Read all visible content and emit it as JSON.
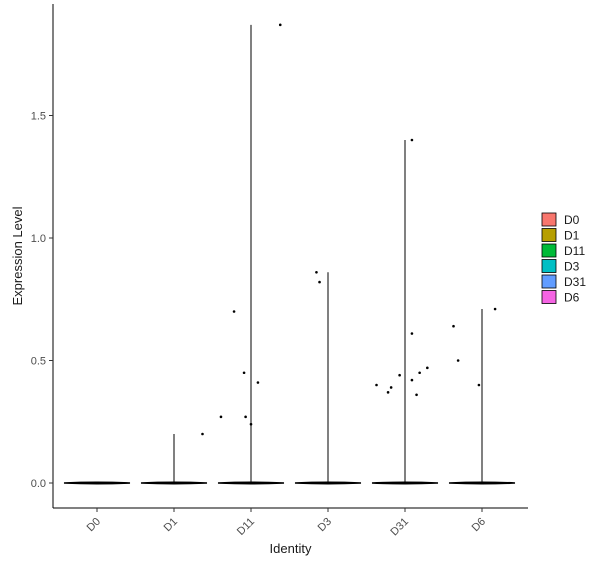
{
  "chart_data": {
    "type": "violin",
    "title": "",
    "xlabel": "Identity",
    "ylabel": "Expression Level",
    "ylim": [
      -0.08,
      1.93
    ],
    "yticks": [
      0.0,
      0.5,
      1.0,
      1.5
    ],
    "ytick_labels": [
      "0.0",
      "0.5",
      "1.0",
      "1.5"
    ],
    "categories": [
      "D0",
      "D1",
      "D11",
      "D3",
      "D31",
      "D6"
    ],
    "grid": false,
    "legend_position": "right",
    "series": [
      {
        "name": "D0",
        "color": "#F8766D",
        "max": 0.0,
        "points": []
      },
      {
        "name": "D1",
        "color": "#B79F00",
        "max": 0.2,
        "points": [
          {
            "jitter": 0.37,
            "value": 0.2
          }
        ]
      },
      {
        "name": "D11",
        "color": "#00BA38",
        "max": 1.87,
        "points": [
          {
            "jitter": -0.39,
            "value": 0.27
          },
          {
            "jitter": -0.22,
            "value": 0.7
          },
          {
            "jitter": -0.09,
            "value": 0.45
          },
          {
            "jitter": -0.07,
            "value": 0.27
          },
          {
            "jitter": 0.0,
            "value": 0.24
          },
          {
            "jitter": 0.09,
            "value": 0.41
          },
          {
            "jitter": 0.38,
            "value": 1.87
          }
        ]
      },
      {
        "name": "D3",
        "color": "#00BFC4",
        "max": 0.86,
        "points": [
          {
            "jitter": -0.15,
            "value": 0.86
          },
          {
            "jitter": -0.11,
            "value": 0.82
          }
        ]
      },
      {
        "name": "D31",
        "color": "#619CFF",
        "max": 1.4,
        "points": [
          {
            "jitter": -0.37,
            "value": 0.4
          },
          {
            "jitter": -0.22,
            "value": 0.37
          },
          {
            "jitter": -0.18,
            "value": 0.39
          },
          {
            "jitter": -0.07,
            "value": 0.44
          },
          {
            "jitter": 0.09,
            "value": 1.4
          },
          {
            "jitter": 0.09,
            "value": 0.61
          },
          {
            "jitter": 0.09,
            "value": 0.42
          },
          {
            "jitter": 0.15,
            "value": 0.36
          },
          {
            "jitter": 0.19,
            "value": 0.45
          },
          {
            "jitter": 0.29,
            "value": 0.47
          }
        ]
      },
      {
        "name": "D6",
        "color": "#F564E3",
        "max": 0.71,
        "points": [
          {
            "jitter": -0.37,
            "value": 0.64
          },
          {
            "jitter": -0.31,
            "value": 0.5
          },
          {
            "jitter": -0.04,
            "value": 0.4
          },
          {
            "jitter": 0.17,
            "value": 0.71
          }
        ]
      }
    ]
  }
}
